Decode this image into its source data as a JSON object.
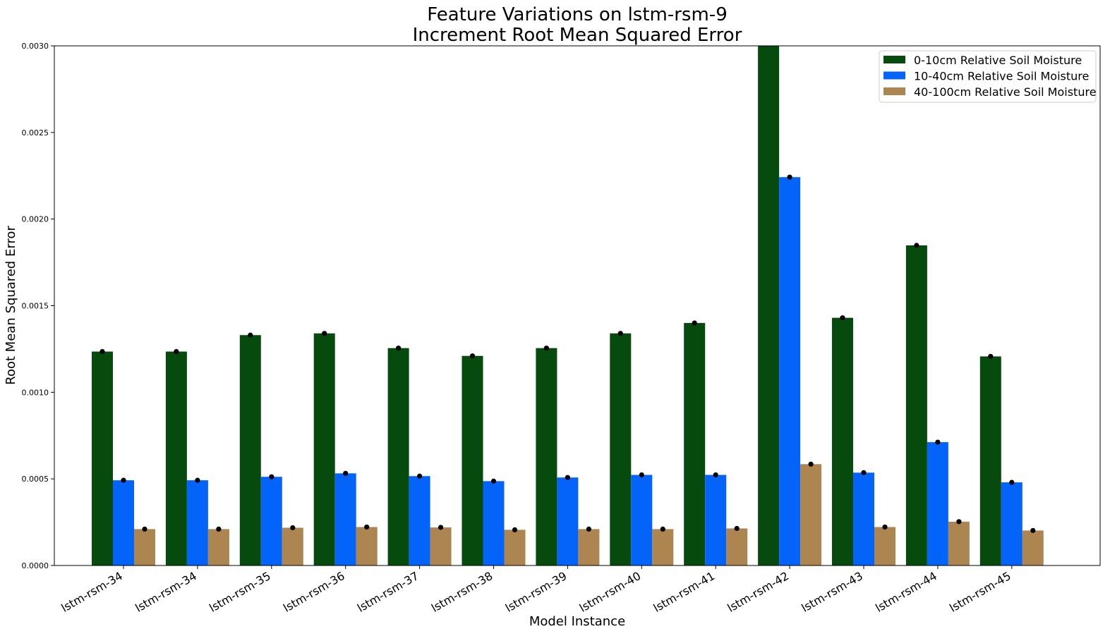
{
  "chart_data": {
    "type": "bar",
    "title": "Feature Variations on lstm-rsm-9",
    "subtitle": "Increment Root Mean Squared Error",
    "xlabel": "Model Instance",
    "ylabel": "Root Mean Squared Error",
    "ylim": [
      0,
      0.003
    ],
    "yticks": [
      "0.0000",
      "0.0005",
      "0.0010",
      "0.0015",
      "0.0020",
      "0.0025",
      "0.0030"
    ],
    "categories": [
      "lstm-rsm-34",
      "lstm-rsm-34",
      "lstm-rsm-35",
      "lstm-rsm-36",
      "lstm-rsm-37",
      "lstm-rsm-38",
      "lstm-rsm-39",
      "lstm-rsm-40",
      "lstm-rsm-41",
      "lstm-rsm-42",
      "lstm-rsm-43",
      "lstm-rsm-44",
      "lstm-rsm-45"
    ],
    "series": [
      {
        "name": "0-10cm Relative Soil Moisture",
        "color": "#074a0e",
        "values": [
          0.001235,
          0.001235,
          0.00133,
          0.00134,
          0.001255,
          0.00121,
          0.001255,
          0.00134,
          0.0014,
          0.0031,
          0.00143,
          0.001848,
          0.001207
        ]
      },
      {
        "name": "10-40cm Relative Soil Moisture",
        "color": "#0464fa",
        "values": [
          0.000492,
          0.000492,
          0.000512,
          0.000532,
          0.000516,
          0.000487,
          0.000508,
          0.000523,
          0.000523,
          0.002242,
          0.000536,
          0.000712,
          0.00048
        ]
      },
      {
        "name": "40-100cm Relative Soil Moisture",
        "color": "#ad8550",
        "values": [
          0.00021,
          0.00021,
          0.000218,
          0.000222,
          0.00022,
          0.000206,
          0.00021,
          0.00021,
          0.000214,
          0.000585,
          0.000222,
          0.000253,
          0.000202
        ]
      }
    ],
    "error_markers": true,
    "legend_position": "top-right",
    "grid": false
  }
}
